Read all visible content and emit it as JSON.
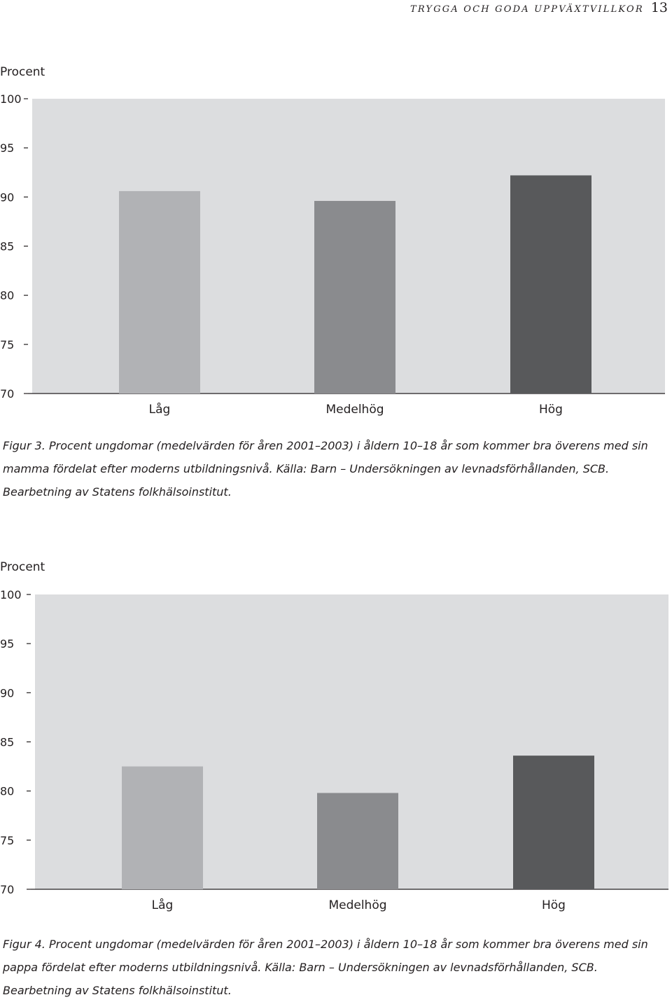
{
  "header": {
    "running_title": "TRYGGA OCH GODA UPPVÄXTVILLKOR",
    "page_number": "13"
  },
  "chart_data": [
    {
      "type": "bar",
      "ylabel": "Procent",
      "ylim": [
        70,
        100
      ],
      "yticks": [
        100,
        95,
        90,
        85,
        80,
        75,
        70
      ],
      "categories": [
        "Låg",
        "Medelhög",
        "Hög"
      ],
      "values": [
        90.6,
        89.6,
        92.2
      ],
      "colors": [
        "#b1b2b5",
        "#8a8b8e",
        "#58595b"
      ],
      "plot_background": "#dcdddf",
      "caption": "Figur 3. Procent ungdomar (medelvärden för åren 2001–2003) i åldern 10–18 år som kommer bra överens med sin mamma fördelat efter moderns utbildningsnivå.  Källa: Barn – Undersökningen av levnadsförhållanden, SCB. Bearbetning av Statens folkhälsoinstitut."
    },
    {
      "type": "bar",
      "ylabel": "Procent",
      "ylim": [
        70,
        100
      ],
      "yticks": [
        100,
        95,
        90,
        85,
        80,
        75,
        70
      ],
      "categories": [
        "Låg",
        "Medelhög",
        "Hög"
      ],
      "values": [
        82.5,
        79.8,
        83.6
      ],
      "colors": [
        "#b1b2b5",
        "#8a8b8e",
        "#58595b"
      ],
      "plot_background": "#dcdddf",
      "caption": "Figur 4. Procent ungdomar (medelvärden för åren 2001–2003) i åldern 10–18 år som kommer bra överens med sin pappa fördelat efter moderns utbildningsnivå.  Källa: Barn – Undersökningen av levnadsförhållanden, SCB. Bearbetning av Statens folkhälsoinstitut."
    }
  ]
}
